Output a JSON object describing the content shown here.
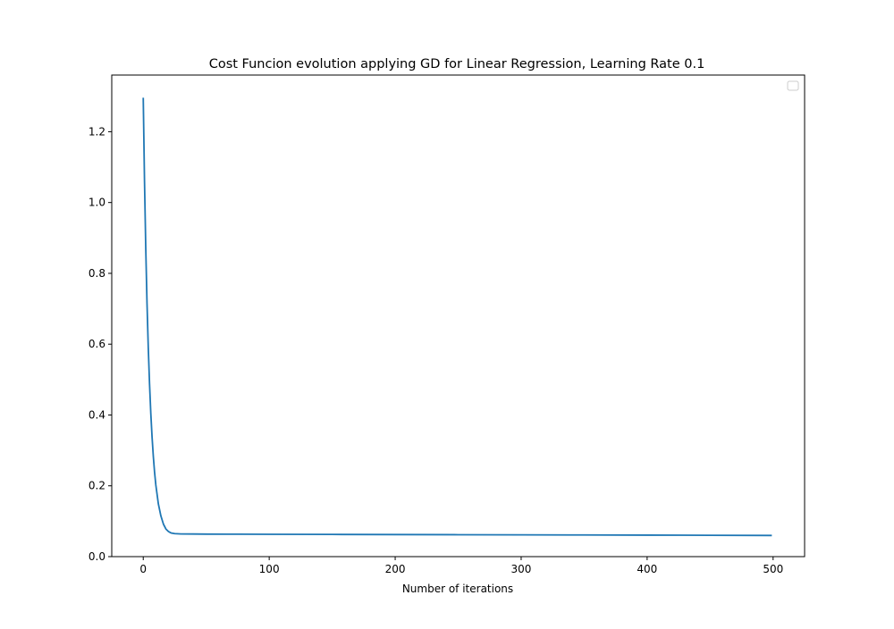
{
  "chart_data": {
    "type": "line",
    "title": "Cost Funcion evolution applying GD for Linear Regression, Learning Rate 0.1",
    "xlabel": "Number of iterations",
    "ylabel": "",
    "xlim": [
      -25,
      525
    ],
    "ylim": [
      0,
      1.36
    ],
    "xticks": [
      0,
      100,
      200,
      300,
      400,
      500
    ],
    "yticks": [
      0.0,
      0.2,
      0.4,
      0.6,
      0.8,
      1.0,
      1.2
    ],
    "xtick_labels": [
      "0",
      "100",
      "200",
      "300",
      "400",
      "500"
    ],
    "ytick_labels": [
      "0.0",
      "0.2",
      "0.4",
      "0.6",
      "0.8",
      "1.0",
      "1.2"
    ],
    "grid": false,
    "legend": {
      "location": "top-right",
      "entries": []
    },
    "series": [
      {
        "color": "#1f77b4",
        "x": [
          0,
          1,
          2,
          3,
          4,
          5,
          6,
          7,
          8,
          9,
          10,
          12,
          14,
          16,
          18,
          20,
          22,
          25,
          30,
          40,
          50,
          75,
          100,
          150,
          200,
          250,
          300,
          350,
          400,
          450,
          499
        ],
        "y": [
          1.296,
          1.06,
          0.87,
          0.715,
          0.59,
          0.488,
          0.405,
          0.338,
          0.283,
          0.238,
          0.202,
          0.149,
          0.115,
          0.092,
          0.078,
          0.071,
          0.067,
          0.065,
          0.064,
          0.0638,
          0.0636,
          0.0634,
          0.0631,
          0.0627,
          0.0623,
          0.0619,
          0.0615,
          0.0611,
          0.0607,
          0.0603,
          0.0598
        ]
      }
    ]
  }
}
